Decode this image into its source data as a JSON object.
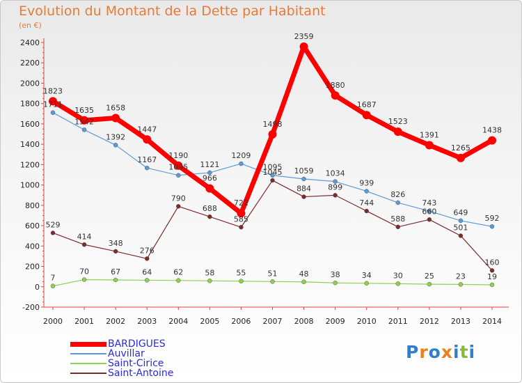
{
  "title": "Evolution du Montant de la Dette par Habitant",
  "subtitle": "(en €)",
  "logo_text": "Proxiti",
  "chart_data": {
    "type": "line",
    "title": "Evolution du Montant de la Dette par Habitant",
    "ylabel": "(en €)",
    "xlabel": "",
    "x": [
      "2000",
      "2001",
      "2002",
      "2003",
      "2004",
      "2005",
      "2006",
      "2007",
      "2008",
      "2009",
      "2010",
      "2011",
      "2012",
      "2013",
      "2014"
    ],
    "ylim": [
      -200,
      2400
    ],
    "yticks": [
      -200,
      0,
      200,
      400,
      600,
      800,
      1000,
      1200,
      1400,
      1600,
      1800,
      2000,
      2200,
      2400
    ],
    "grid": false,
    "legend_position": "bottom-left",
    "series": [
      {
        "name": "BARDIGUES",
        "color": "#ff0000",
        "values": [
          1823,
          1635,
          1658,
          1447,
          1190,
          966,
          722,
          1498,
          2359,
          1880,
          1687,
          1523,
          1391,
          1265,
          1438
        ]
      },
      {
        "name": "Auvillar",
        "color": "#5b9bd5",
        "values": [
          1711,
          1542,
          1392,
          1167,
          1095,
          1121,
          1209,
          1095,
          1059,
          1034,
          939,
          826,
          743,
          649,
          592
        ]
      },
      {
        "name": "Saint-Cirice",
        "color": "#8fd14f",
        "values": [
          7,
          70,
          67,
          64,
          62,
          58,
          55,
          51,
          48,
          38,
          34,
          30,
          25,
          23,
          19
        ]
      },
      {
        "name": "Saint-Antoine",
        "color": "#7b2b2b",
        "values": [
          529,
          414,
          348,
          276,
          790,
          688,
          585,
          1045,
          884,
          899,
          744,
          588,
          660,
          501,
          160
        ]
      }
    ]
  }
}
